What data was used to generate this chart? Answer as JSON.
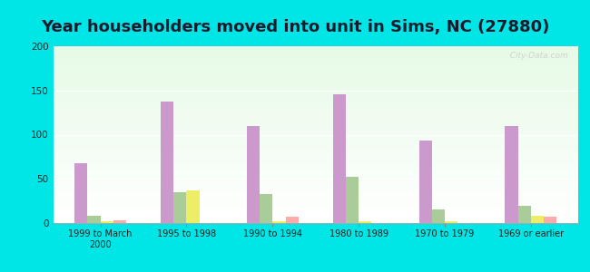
{
  "title": "Year householders moved into unit in Sims, NC (27880)",
  "categories": [
    "1999 to March\n2000",
    "1995 to 1998",
    "1990 to 1994",
    "1980 to 1989",
    "1970 to 1979",
    "1969 or earlier"
  ],
  "series": {
    "White Non-Hispanic": [
      68,
      137,
      110,
      146,
      93,
      110
    ],
    "Black": [
      8,
      35,
      33,
      52,
      15,
      20
    ],
    "Other Race": [
      2,
      37,
      2,
      2,
      2,
      8
    ],
    "Hispanic or Latino": [
      3,
      0,
      7,
      0,
      0,
      7
    ]
  },
  "colors": {
    "White Non-Hispanic": "#cc99cc",
    "Black": "#aacc99",
    "Other Race": "#eeee66",
    "Hispanic or Latino": "#ffaaaa"
  },
  "ylim": [
    0,
    200
  ],
  "yticks": [
    0,
    50,
    100,
    150,
    200
  ],
  "background_color": "#00e5e5",
  "title_fontsize": 13,
  "bar_width": 0.15,
  "watermark": "  City-Data.com"
}
